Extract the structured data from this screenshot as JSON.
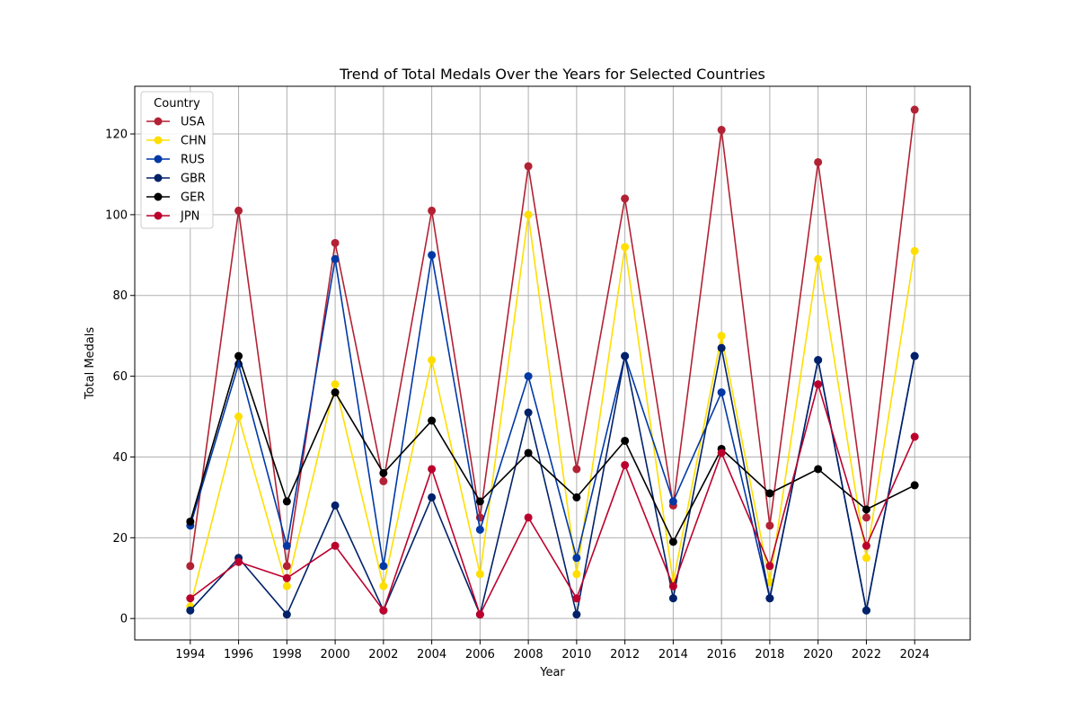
{
  "chart_data": {
    "type": "line",
    "title": "Trend of Total Medals Over the Years for Selected Countries",
    "xlabel": "Year",
    "ylabel": "Total Medals",
    "x": [
      1994,
      1996,
      1998,
      2000,
      2002,
      2004,
      2006,
      2008,
      2010,
      2012,
      2014,
      2016,
      2018,
      2020,
      2022,
      2024
    ],
    "x_tick_labels": [
      "1994",
      "1996",
      "1998",
      "2000",
      "2002",
      "2004",
      "2006",
      "2008",
      "2010",
      "2012",
      "2014",
      "2016",
      "2018",
      "2020",
      "2022",
      "2024"
    ],
    "y_ticks": [
      0,
      20,
      40,
      60,
      80,
      100,
      120
    ],
    "y_tick_labels": [
      "0",
      "20",
      "40",
      "60",
      "80",
      "100",
      "120"
    ],
    "xlim": [
      1991.7,
      1993.0
    ],
    "ylim": [
      -5.3,
      131.8
    ],
    "grid": true,
    "legend": {
      "title": "Country",
      "placement": "top-left"
    },
    "series": [
      {
        "name": "USA",
        "color": "#B22234",
        "values": [
          13,
          101,
          13,
          93,
          34,
          101,
          25,
          112,
          37,
          104,
          28,
          121,
          23,
          113,
          25,
          126
        ]
      },
      {
        "name": "CHN",
        "color": "#FFDE00",
        "values": [
          3,
          50,
          8,
          58,
          8,
          64,
          11,
          100,
          11,
          92,
          9,
          70,
          9,
          89,
          15,
          91
        ]
      },
      {
        "name": "RUS",
        "color": "#0039A6",
        "values": [
          23,
          63,
          18,
          89,
          13,
          90,
          22,
          60,
          15,
          65,
          29,
          56,
          5,
          64,
          2,
          65
        ]
      },
      {
        "name": "GBR",
        "color": "#012169",
        "values": [
          2,
          15,
          1,
          28,
          2,
          30,
          1,
          51,
          1,
          65,
          5,
          67,
          5,
          64,
          2,
          65
        ]
      },
      {
        "name": "GER",
        "color": "#000000",
        "values": [
          24,
          65,
          29,
          56,
          36,
          49,
          29,
          41,
          30,
          44,
          19,
          42,
          31,
          37,
          27,
          33
        ]
      },
      {
        "name": "JPN",
        "color": "#BC002D",
        "values": [
          5,
          14,
          10,
          18,
          2,
          37,
          1,
          25,
          5,
          38,
          8,
          41,
          13,
          58,
          18,
          45
        ]
      }
    ]
  }
}
